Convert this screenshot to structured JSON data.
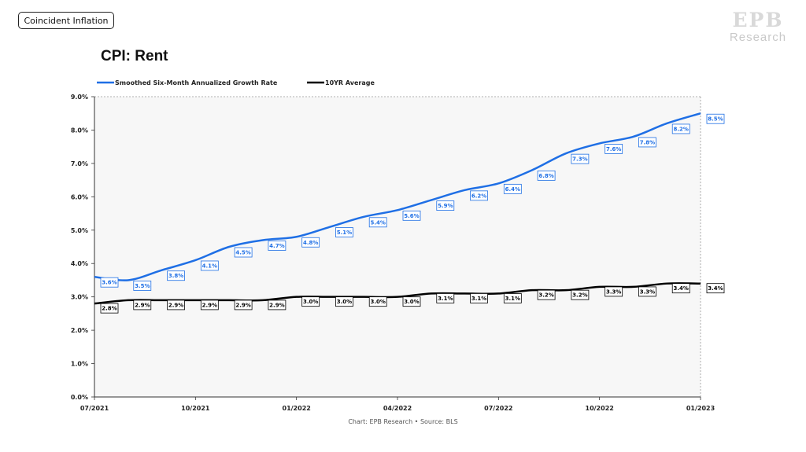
{
  "tag": "Coincident Inflation",
  "brand": {
    "mark": "EPB",
    "sub": "Research"
  },
  "title": "CPI: Rent",
  "source": "Chart: EPB Research  •  Source: BLS",
  "colors": {
    "growth": "#1f6fe5",
    "average": "#000000",
    "plot_bg": "#f7f7f7"
  },
  "chart_data": {
    "type": "line",
    "title": "CPI: Rent",
    "xlabel": "",
    "ylabel": "",
    "x_ticks": [
      "07/2021",
      "10/2021",
      "01/2022",
      "04/2022",
      "07/2022",
      "10/2022",
      "01/2023"
    ],
    "y_ticks": [
      "0.0%",
      "1.0%",
      "2.0%",
      "3.0%",
      "4.0%",
      "5.0%",
      "6.0%",
      "7.0%",
      "8.0%",
      "9.0%"
    ],
    "ylim": [
      0,
      9
    ],
    "x": [
      "07/2021",
      "08/2021",
      "09/2021",
      "10/2021",
      "11/2021",
      "12/2021",
      "01/2022",
      "02/2022",
      "03/2022",
      "04/2022",
      "05/2022",
      "06/2022",
      "07/2022",
      "08/2022",
      "09/2022",
      "10/2022",
      "11/2022",
      "12/2022",
      "01/2023"
    ],
    "legend_position": "top-left",
    "grid": false,
    "series": [
      {
        "name": "Smoothed Six-Month Annualized Growth Rate",
        "color": "#1f6fe5",
        "values": [
          3.6,
          3.5,
          3.8,
          4.1,
          4.5,
          4.7,
          4.8,
          5.1,
          5.4,
          5.6,
          5.9,
          6.2,
          6.4,
          6.8,
          7.3,
          7.6,
          7.8,
          8.2,
          8.5
        ],
        "labels": [
          "3.6%",
          "3.5%",
          "3.8%",
          "4.1%",
          "4.5%",
          "4.7%",
          "4.8%",
          "5.1%",
          "5.4%",
          "5.6%",
          "5.9%",
          "6.2%",
          "6.4%",
          "6.8%",
          "7.3%",
          "7.6%",
          "7.8%",
          "8.2%",
          "8.5%"
        ]
      },
      {
        "name": "10YR Average",
        "color": "#000000",
        "values": [
          2.8,
          2.9,
          2.9,
          2.9,
          2.9,
          2.9,
          3.0,
          3.0,
          3.0,
          3.0,
          3.1,
          3.1,
          3.1,
          3.2,
          3.2,
          3.3,
          3.3,
          3.4,
          3.4
        ],
        "labels": [
          "2.8%",
          "2.9%",
          "2.9%",
          "2.9%",
          "2.9%",
          "2.9%",
          "3.0%",
          "3.0%",
          "3.0%",
          "3.0%",
          "3.1%",
          "3.1%",
          "3.1%",
          "3.2%",
          "3.2%",
          "3.3%",
          "3.3%",
          "3.4%",
          "3.4%"
        ]
      }
    ]
  }
}
